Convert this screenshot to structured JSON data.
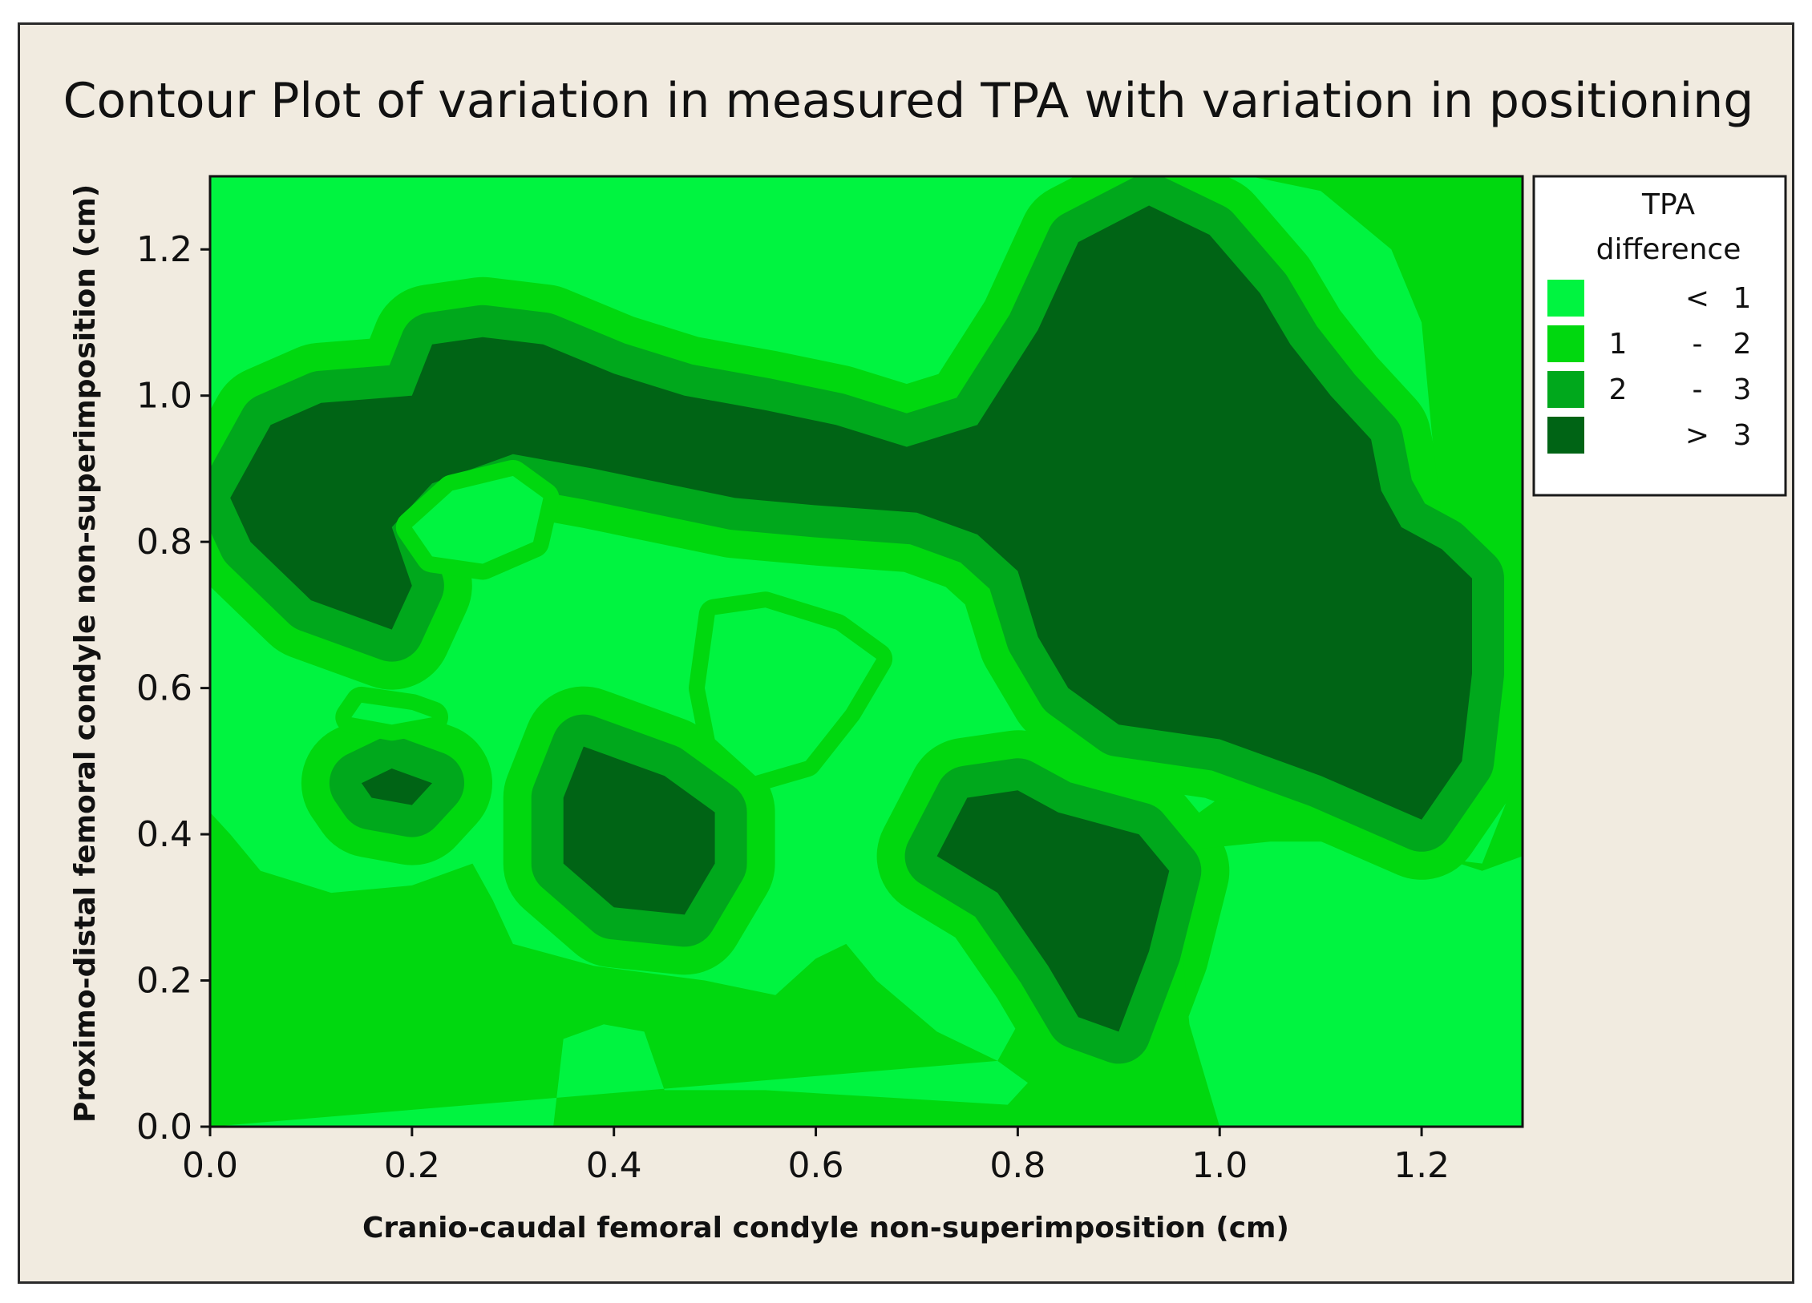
{
  "chart_data": {
    "type": "contour",
    "title": "Contour Plot of variation in measured TPA with variation in positioning",
    "xlabel": "Cranio-caudal femoral condyle non-superimposition (cm)",
    "ylabel": "Proximo-distal femoral condyle non-superimposition (cm)",
    "xlim": [
      0.0,
      1.3
    ],
    "ylim": [
      0.0,
      1.3
    ],
    "xticks": [
      "0.0",
      "0.2",
      "0.4",
      "0.6",
      "0.8",
      "1.0",
      "1.2"
    ],
    "yticks": [
      "0.0",
      "0.2",
      "0.4",
      "0.6",
      "0.8",
      "1.0",
      "1.2"
    ],
    "grid": false,
    "legend": {
      "position": "right",
      "title_line1": "TPA",
      "title_line2": "difference",
      "entries": [
        {
          "left": "",
          "op": "<",
          "right": "1",
          "color": "#00f440"
        },
        {
          "left": "1",
          "op": "-",
          "right": "2",
          "color": "#00d80f"
        },
        {
          "left": "2",
          "op": "-",
          "right": "3",
          "color": "#00a81c"
        },
        {
          "left": "",
          "op": ">",
          "right": "3",
          "color": "#006415"
        }
      ]
    },
    "levels": [
      {
        "range": "< 1",
        "color": "#00f440"
      },
      {
        "range": "1 - 2",
        "color": "#00d80f"
      },
      {
        "range": "2 - 3",
        "color": "#00a81c"
      },
      {
        "range": "> 3",
        "color": "#006415"
      }
    ],
    "regions": [
      {
        "level": "1 - 2",
        "points": [
          [
            0.0,
            0.43
          ],
          [
            0.02,
            0.4
          ],
          [
            0.05,
            0.35
          ],
          [
            0.12,
            0.32
          ],
          [
            0.2,
            0.33
          ],
          [
            0.26,
            0.36
          ],
          [
            0.28,
            0.31
          ],
          [
            0.3,
            0.25
          ],
          [
            0.38,
            0.22
          ],
          [
            0.49,
            0.2
          ],
          [
            0.56,
            0.18
          ],
          [
            0.6,
            0.23
          ],
          [
            0.63,
            0.25
          ],
          [
            0.66,
            0.2
          ],
          [
            0.72,
            0.13
          ],
          [
            0.78,
            0.09
          ],
          [
            0.81,
            0.06
          ],
          [
            0.79,
            0.03
          ],
          [
            0.55,
            0.05
          ],
          [
            0.45,
            0.05
          ],
          [
            0.43,
            0.13
          ],
          [
            0.39,
            0.14
          ],
          [
            0.35,
            0.12
          ],
          [
            0.34,
            0.0
          ],
          [
            1.05,
            0.0
          ],
          [
            1.0,
            0.0
          ],
          [
            0.97,
            0.14
          ],
          [
            0.96,
            0.28
          ],
          [
            0.98,
            0.38
          ],
          [
            1.05,
            0.39
          ],
          [
            1.17,
            0.39
          ],
          [
            1.26,
            0.35
          ],
          [
            1.3,
            0.37
          ],
          [
            1.3,
            0.0
          ],
          [
            1.3,
            1.3
          ],
          [
            1.03,
            1.3
          ],
          [
            1.1,
            1.28
          ],
          [
            1.17,
            1.2
          ],
          [
            1.2,
            1.1
          ],
          [
            1.21,
            0.95
          ],
          [
            1.22,
            0.83
          ],
          [
            1.3,
            0.74
          ],
          [
            1.3,
            0.5
          ],
          [
            1.26,
            0.36
          ],
          [
            1.2,
            0.37
          ],
          [
            1.15,
            0.43
          ],
          [
            1.0,
            0.45
          ],
          [
            0.95,
            0.4
          ],
          [
            0.9,
            0.35
          ],
          [
            0.85,
            0.28
          ],
          [
            0.82,
            0.22
          ],
          [
            0.8,
            0.14
          ],
          [
            0.78,
            0.09
          ],
          [
            0.0,
            0.0
          ]
        ]
      },
      {
        "level": "> 3",
        "points": [
          [
            0.02,
            0.86
          ],
          [
            0.06,
            0.96
          ],
          [
            0.11,
            0.99
          ],
          [
            0.2,
            1.0
          ],
          [
            0.22,
            1.07
          ],
          [
            0.27,
            1.08
          ],
          [
            0.33,
            1.07
          ],
          [
            0.4,
            1.03
          ],
          [
            0.47,
            1.0
          ],
          [
            0.55,
            0.98
          ],
          [
            0.62,
            0.96
          ],
          [
            0.69,
            0.93
          ],
          [
            0.76,
            0.96
          ],
          [
            0.82,
            1.09
          ],
          [
            0.86,
            1.21
          ],
          [
            0.93,
            1.26
          ],
          [
            0.99,
            1.22
          ],
          [
            1.04,
            1.14
          ],
          [
            1.07,
            1.07
          ],
          [
            1.11,
            1.0
          ],
          [
            1.15,
            0.94
          ],
          [
            1.16,
            0.87
          ],
          [
            1.18,
            0.82
          ],
          [
            1.22,
            0.79
          ],
          [
            1.25,
            0.75
          ],
          [
            1.25,
            0.62
          ],
          [
            1.24,
            0.5
          ],
          [
            1.2,
            0.42
          ],
          [
            1.1,
            0.48
          ],
          [
            1.0,
            0.53
          ],
          [
            0.9,
            0.55
          ],
          [
            0.85,
            0.6
          ],
          [
            0.82,
            0.67
          ],
          [
            0.8,
            0.76
          ],
          [
            0.76,
            0.81
          ],
          [
            0.7,
            0.84
          ],
          [
            0.6,
            0.85
          ],
          [
            0.52,
            0.86
          ],
          [
            0.45,
            0.88
          ],
          [
            0.38,
            0.9
          ],
          [
            0.3,
            0.92
          ],
          [
            0.22,
            0.88
          ],
          [
            0.18,
            0.82
          ],
          [
            0.2,
            0.74
          ],
          [
            0.18,
            0.68
          ],
          [
            0.1,
            0.72
          ],
          [
            0.04,
            0.8
          ],
          [
            0.02,
            0.86
          ]
        ]
      },
      {
        "level": "< 1",
        "points": [
          [
            0.2,
            0.82
          ],
          [
            0.24,
            0.87
          ],
          [
            0.3,
            0.89
          ],
          [
            0.33,
            0.86
          ],
          [
            0.32,
            0.8
          ],
          [
            0.27,
            0.77
          ],
          [
            0.22,
            0.78
          ],
          [
            0.2,
            0.82
          ]
        ]
      },
      {
        "level": "< 1",
        "points": [
          [
            0.5,
            0.7
          ],
          [
            0.55,
            0.71
          ],
          [
            0.62,
            0.68
          ],
          [
            0.66,
            0.64
          ],
          [
            0.63,
            0.57
          ],
          [
            0.59,
            0.5
          ],
          [
            0.54,
            0.48
          ],
          [
            0.5,
            0.53
          ],
          [
            0.49,
            0.6
          ],
          [
            0.5,
            0.7
          ]
        ]
      },
      {
        "level": "> 3",
        "points": [
          [
            0.37,
            0.52
          ],
          [
            0.45,
            0.48
          ],
          [
            0.5,
            0.43
          ],
          [
            0.5,
            0.36
          ],
          [
            0.47,
            0.29
          ],
          [
            0.4,
            0.3
          ],
          [
            0.35,
            0.36
          ],
          [
            0.35,
            0.45
          ],
          [
            0.37,
            0.52
          ]
        ]
      },
      {
        "level": "< 1",
        "points": [
          [
            0.14,
            0.56
          ],
          [
            0.18,
            0.55
          ],
          [
            0.22,
            0.56
          ],
          [
            0.2,
            0.57
          ],
          [
            0.15,
            0.58
          ],
          [
            0.14,
            0.56
          ]
        ]
      },
      {
        "level": "> 3",
        "points": [
          [
            0.15,
            0.47
          ],
          [
            0.18,
            0.49
          ],
          [
            0.22,
            0.47
          ],
          [
            0.2,
            0.44
          ],
          [
            0.16,
            0.45
          ],
          [
            0.15,
            0.47
          ]
        ]
      },
      {
        "level": "> 3",
        "points": [
          [
            0.72,
            0.37
          ],
          [
            0.78,
            0.32
          ],
          [
            0.83,
            0.22
          ],
          [
            0.86,
            0.15
          ],
          [
            0.9,
            0.13
          ],
          [
            0.93,
            0.24
          ],
          [
            0.95,
            0.35
          ],
          [
            0.92,
            0.4
          ],
          [
            0.84,
            0.43
          ],
          [
            0.8,
            0.46
          ],
          [
            0.75,
            0.45
          ],
          [
            0.72,
            0.37
          ]
        ]
      }
    ]
  }
}
